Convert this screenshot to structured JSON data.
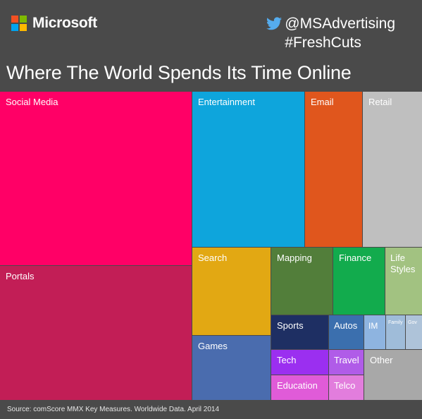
{
  "brand": {
    "name": "Microsoft",
    "logo_colors": [
      "#f25022",
      "#7fba00",
      "#00a4ef",
      "#ffb900"
    ]
  },
  "social": {
    "icon": "twitter-bird-icon",
    "handle": "@MSAdvertising",
    "hashtag": "#FreshCuts"
  },
  "footer": {
    "source": "Source: comScore MMX Key Measures. Worldwide Data. April 2014"
  },
  "chart_data": {
    "type": "treemap",
    "title": "Where The World Spends Its Time Online",
    "categories": [
      {
        "label": "Social Media",
        "color": "#ff0066"
      },
      {
        "label": "Portals",
        "color": "#c21e56"
      },
      {
        "label": "Entertainment",
        "color": "#0ea5dc"
      },
      {
        "label": "Email",
        "color": "#e0561d"
      },
      {
        "label": "Retail",
        "color": "#bfbfbf"
      },
      {
        "label": "Search",
        "color": "#e2a813"
      },
      {
        "label": "Games",
        "color": "#4a6cae"
      },
      {
        "label": "Mapping",
        "color": "#527e3a"
      },
      {
        "label": "Finance",
        "color": "#12ab4d"
      },
      {
        "label": "Life Styles",
        "color": "#a2c281"
      },
      {
        "label": "Sports",
        "color": "#1e2f63"
      },
      {
        "label": "Autos",
        "color": "#3b6fae"
      },
      {
        "label": "IM",
        "color": "#8eb4e0"
      },
      {
        "label": "Family",
        "color": "#9fbcd9"
      },
      {
        "label": "Gov",
        "color": "#aec3d9"
      },
      {
        "label": "Tech",
        "color": "#9b2ff0"
      },
      {
        "label": "Travel",
        "color": "#b05ce8"
      },
      {
        "label": "Other",
        "color": "#a8a8a8"
      },
      {
        "label": "Education",
        "color": "#e05bd8"
      },
      {
        "label": "Telco",
        "color": "#e27ddd"
      }
    ]
  }
}
